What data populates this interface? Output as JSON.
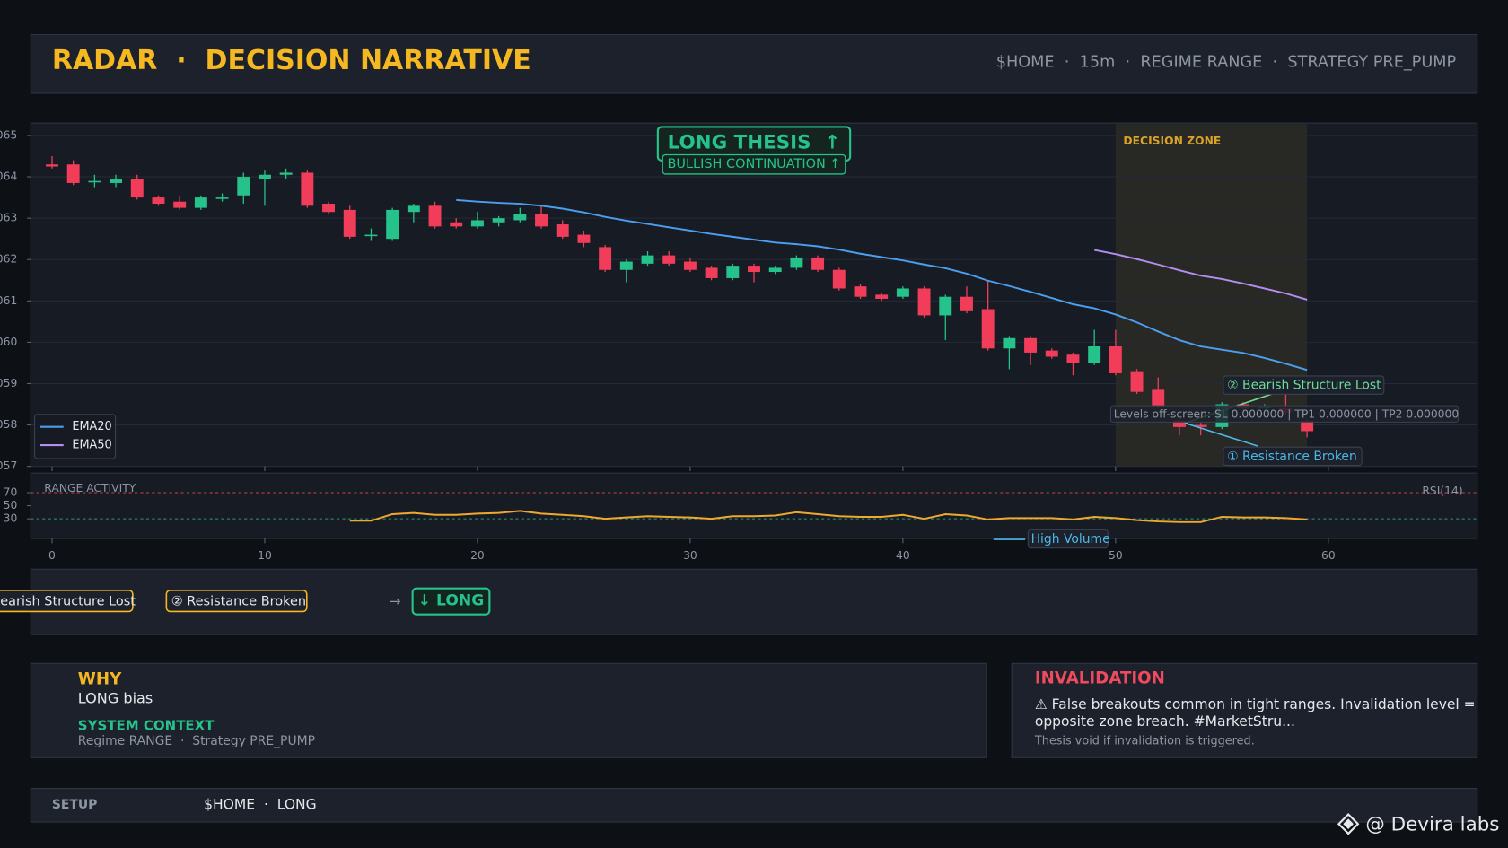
{
  "header": {
    "title": "RADAR  ·  DECISION NARRATIVE",
    "meta": "$HOME  ·  15m  ·  REGIME RANGE  ·  STRATEGY PRE_PUMP"
  },
  "chart_data": [
    {
      "type": "candlestick",
      "x": [
        0,
        1,
        2,
        3,
        4,
        5,
        6,
        7,
        8,
        9,
        10,
        11,
        12,
        13,
        14,
        15,
        16,
        17,
        18,
        19,
        20,
        21,
        22,
        23,
        24,
        25,
        26,
        27,
        28,
        29,
        30,
        31,
        32,
        33,
        34,
        35,
        36,
        37,
        38,
        39,
        40,
        41,
        42,
        43,
        44,
        45,
        46,
        47,
        48,
        49,
        50,
        51,
        52,
        53,
        54,
        55,
        56,
        57,
        58,
        59
      ],
      "open": [
        64.3,
        64.3,
        63.88,
        63.85,
        63.95,
        63.5,
        63.4,
        63.25,
        63.48,
        63.55,
        63.95,
        64.05,
        64.1,
        63.35,
        63.2,
        62.58,
        62.5,
        63.15,
        63.3,
        62.9,
        62.8,
        62.9,
        62.95,
        63.1,
        62.85,
        62.6,
        62.3,
        61.75,
        61.9,
        62.1,
        61.95,
        61.8,
        61.55,
        61.85,
        61.7,
        61.8,
        62.05,
        61.75,
        61.35,
        61.15,
        61.1,
        61.3,
        60.65,
        61.1,
        60.8,
        59.85,
        60.1,
        59.8,
        59.7,
        59.5,
        59.9,
        59.3,
        58.85,
        58.1,
        58.0,
        57.95,
        58.5,
        58.4,
        58.4,
        58.1
      ],
      "high": [
        64.5,
        64.4,
        64.05,
        64.05,
        64.05,
        63.55,
        63.55,
        63.55,
        63.6,
        64.1,
        64.15,
        64.2,
        64.15,
        63.4,
        63.3,
        62.75,
        63.25,
        63.35,
        63.4,
        63.0,
        63.15,
        63.05,
        63.25,
        63.3,
        62.95,
        62.7,
        62.35,
        62.0,
        62.2,
        62.2,
        62.05,
        61.85,
        61.9,
        61.9,
        61.85,
        62.1,
        62.1,
        61.8,
        61.4,
        61.2,
        61.35,
        61.35,
        61.15,
        61.35,
        61.5,
        60.15,
        60.15,
        59.85,
        59.75,
        60.3,
        60.3,
        59.35,
        59.15,
        58.25,
        58.05,
        58.55,
        58.55,
        58.5,
        58.75,
        58.15
      ],
      "low": [
        64.2,
        63.8,
        63.75,
        63.75,
        63.45,
        63.3,
        63.2,
        63.2,
        63.4,
        63.35,
        63.3,
        63.95,
        63.25,
        63.1,
        62.5,
        62.45,
        62.45,
        62.9,
        62.75,
        62.75,
        62.75,
        62.8,
        62.9,
        62.75,
        62.5,
        62.3,
        61.7,
        61.45,
        61.85,
        61.85,
        61.7,
        61.5,
        61.5,
        61.45,
        61.65,
        61.75,
        61.7,
        61.25,
        61.05,
        61.0,
        61.05,
        60.6,
        60.05,
        60.7,
        59.8,
        59.35,
        59.45,
        59.6,
        59.2,
        59.45,
        59.2,
        58.75,
        58.4,
        57.75,
        57.75,
        57.9,
        58.35,
        58.4,
        58.25,
        57.7
      ],
      "close": [
        64.25,
        63.85,
        63.9,
        63.95,
        63.5,
        63.35,
        63.25,
        63.5,
        63.5,
        64.0,
        64.05,
        64.1,
        63.3,
        63.15,
        62.55,
        62.6,
        63.2,
        63.3,
        62.8,
        62.8,
        62.95,
        63.0,
        63.1,
        62.8,
        62.55,
        62.4,
        61.75,
        61.95,
        62.1,
        61.9,
        61.75,
        61.55,
        61.85,
        61.7,
        61.8,
        62.05,
        61.75,
        61.3,
        61.1,
        61.05,
        61.3,
        60.65,
        61.1,
        60.75,
        59.85,
        60.1,
        59.75,
        59.65,
        59.5,
        59.9,
        59.25,
        58.8,
        58.45,
        57.95,
        57.95,
        58.5,
        58.4,
        58.45,
        58.3,
        57.85
      ],
      "up_color": "#26c28b",
      "down_color": "#f23d5a",
      "series": [
        {
          "name": "EMA20",
          "color": "#4c9ff0",
          "values": [
            null,
            null,
            null,
            null,
            null,
            null,
            null,
            null,
            null,
            null,
            null,
            null,
            null,
            null,
            null,
            null,
            null,
            null,
            null,
            63.44,
            63.4,
            63.37,
            63.35,
            63.3,
            63.23,
            63.14,
            63.03,
            62.94,
            62.86,
            62.78,
            62.7,
            62.62,
            62.55,
            62.48,
            62.41,
            62.37,
            62.32,
            62.24,
            62.14,
            62.06,
            61.98,
            61.88,
            61.79,
            61.66,
            61.49,
            61.36,
            61.22,
            61.07,
            60.92,
            60.82,
            60.67,
            60.48,
            60.26,
            60.05,
            59.9,
            59.82,
            59.74,
            59.62,
            59.48,
            59.33
          ]
        },
        {
          "name": "EMA50",
          "color": "#b48ef0",
          "values": [
            null,
            null,
            null,
            null,
            null,
            null,
            null,
            null,
            null,
            null,
            null,
            null,
            null,
            null,
            null,
            null,
            null,
            null,
            null,
            null,
            null,
            null,
            null,
            null,
            null,
            null,
            null,
            null,
            null,
            null,
            null,
            null,
            null,
            null,
            null,
            null,
            null,
            null,
            null,
            null,
            null,
            null,
            null,
            null,
            null,
            null,
            null,
            null,
            null,
            62.23,
            62.13,
            62.01,
            61.88,
            61.74,
            61.61,
            61.53,
            61.42,
            61.3,
            61.18,
            61.03
          ]
        }
      ],
      "xlim": [
        -1,
        67
      ],
      "ylim": [
        57,
        65.3
      ],
      "yticks": [
        {
          "value": 57,
          "label": "057"
        },
        {
          "value": 58,
          "label": "058"
        },
        {
          "value": 59,
          "label": "059"
        },
        {
          "value": 60,
          "label": "060"
        },
        {
          "value": 61,
          "label": "061"
        },
        {
          "value": 62,
          "label": "062"
        },
        {
          "value": 63,
          "label": "063"
        },
        {
          "value": 64,
          "label": "064"
        },
        {
          "value": 65,
          "label": "065"
        }
      ],
      "grid": true,
      "legend": "lower left",
      "zone_label": "DECISION ZONE",
      "zone_x": [
        50,
        59
      ],
      "zone_color": "#e0b040",
      "thesis_title": "LONG THESIS  ↑",
      "thesis_subtitle": "BULLISH CONTINUATION ↑",
      "annotations": [
        "② Bearish Structure Lost",
        "① Resistance Broken",
        "Levels off-screen: SL 0.000000 | TP1 0.000000 | TP2 0.000000"
      ]
    },
    {
      "type": "line",
      "title": "RANGE ACTIVITY",
      "x": [
        0,
        1,
        2,
        3,
        4,
        5,
        6,
        7,
        8,
        9,
        10,
        11,
        12,
        13,
        14,
        15,
        16,
        17,
        18,
        19,
        20,
        21,
        22,
        23,
        24,
        25,
        26,
        27,
        28,
        29,
        30,
        31,
        32,
        33,
        34,
        35,
        36,
        37,
        38,
        39,
        40,
        41,
        42,
        43,
        44,
        45,
        46,
        47,
        48,
        49,
        50,
        51,
        52,
        53,
        54,
        55,
        56,
        57,
        58,
        59
      ],
      "series": [
        {
          "name": "RSI(14)",
          "color": "#f0a830",
          "values": [
            null,
            null,
            null,
            null,
            null,
            null,
            null,
            null,
            null,
            null,
            null,
            null,
            null,
            null,
            27,
            27,
            37,
            39,
            36,
            36,
            38,
            39,
            42,
            38,
            36,
            34,
            30,
            32,
            34,
            33,
            32,
            30,
            34,
            34,
            35,
            40,
            37,
            34,
            33,
            33,
            36,
            30,
            37,
            35,
            29,
            31,
            31,
            31,
            29,
            33,
            31,
            28,
            26,
            25,
            25,
            33,
            32,
            32,
            31,
            29
          ]
        }
      ],
      "xlim": [
        -1,
        67
      ],
      "ylim": [
        0,
        100
      ],
      "yticks": [
        30,
        50,
        70
      ],
      "xticks": [
        0,
        10,
        20,
        30,
        40,
        50,
        60
      ],
      "reference_lines": [
        {
          "value": 70,
          "color": "#c8404e"
        },
        {
          "value": 30,
          "color": "#2a9a78"
        }
      ],
      "annotation": "High Volume"
    }
  ],
  "flow": {
    "steps": [
      "Bearish Structure Lost",
      "② Resistance Broken"
    ],
    "arrow": "→",
    "decision": "↓ LONG"
  },
  "why": {
    "title": "WHY",
    "text": "LONG bias",
    "context_title": "SYSTEM CONTEXT",
    "context": "Regime RANGE  ·  Strategy PRE_PUMP"
  },
  "invalidation": {
    "title": "INVALIDATION",
    "lines": [
      "⚠ False breakouts common in tight ranges. Invalidation level =",
      "opposite zone breach. #MarketStru..."
    ],
    "note": "Thesis void if invalidation is triggered."
  },
  "setup": {
    "label": "SETUP",
    "value": "$HOME  ·  LONG"
  },
  "watermark": "@ Devira labs"
}
